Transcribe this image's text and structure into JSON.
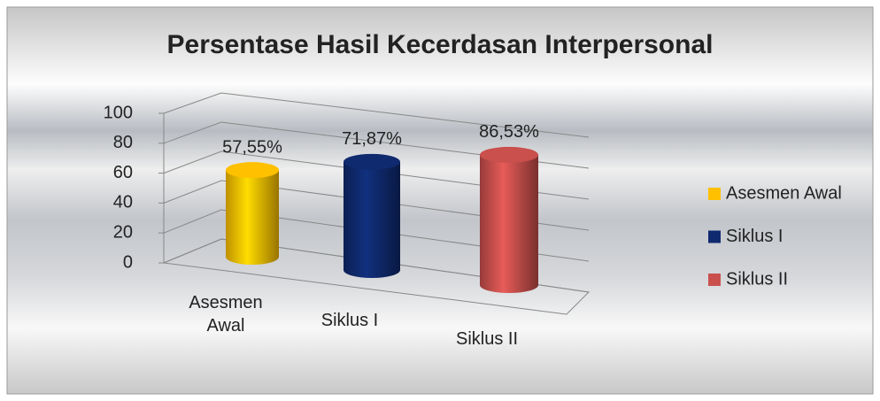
{
  "chart_data": {
    "type": "cylinder",
    "title": "Persentase Hasil Kecerdasan Interpersonal",
    "categories": [
      "Asesmen Awal",
      "Siklus I",
      "Siklus II"
    ],
    "values": [
      57.55,
      71.87,
      86.53
    ],
    "value_labels": [
      "57,55%",
      "71,87%",
      "86,53%"
    ],
    "colors": [
      "#ffc000",
      "#0f2a6e",
      "#c9504d"
    ],
    "ylim": [
      0,
      100
    ],
    "yticks": [
      0,
      20,
      40,
      60,
      80,
      100
    ],
    "grid": true,
    "legend": "right"
  }
}
